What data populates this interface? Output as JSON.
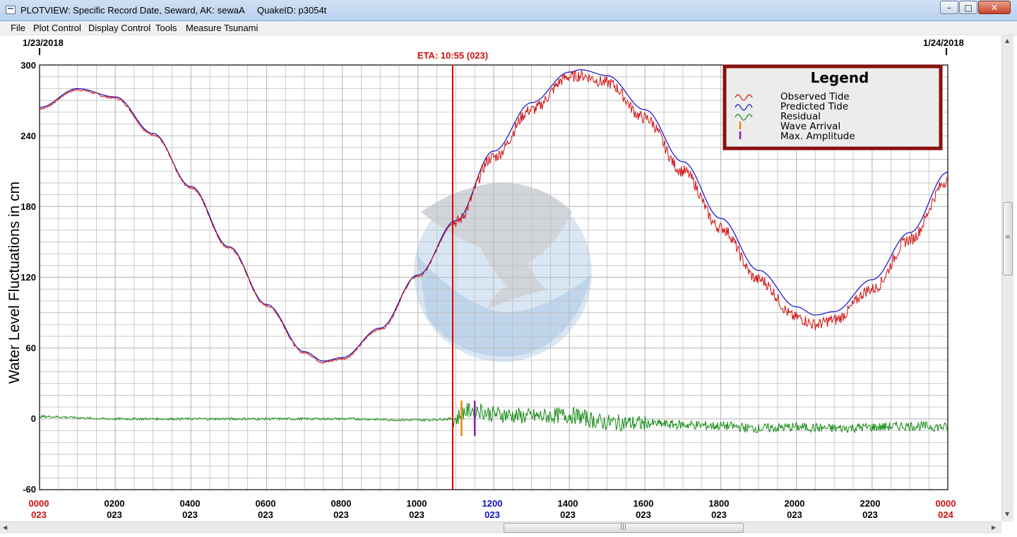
{
  "window": {
    "title": "PLOTVIEW: Specific Record Date, Seward, AK: sewaA     QuakeID: p3054t",
    "minimize_glyph": "–",
    "maximize_glyph": "□",
    "close_glyph": "✕"
  },
  "menu": {
    "items": [
      "File",
      "Plot Control",
      "Display Control",
      "Tools",
      "Measure Tsunami"
    ]
  },
  "plot": {
    "date_left": "1/23/2018",
    "date_right": "1/24/2018",
    "eta_label": "ETA: 10:55 (023)",
    "ylabel": "Water Level Fluctuations in cm",
    "y_ticks": [
      "300",
      "240",
      "180",
      "120",
      "60",
      "0",
      "-60"
    ],
    "x_ticks": [
      {
        "time": "0000",
        "day": "023",
        "color": "red"
      },
      {
        "time": "0200",
        "day": "023",
        "color": "black"
      },
      {
        "time": "0400",
        "day": "023",
        "color": "black"
      },
      {
        "time": "0600",
        "day": "023",
        "color": "black"
      },
      {
        "time": "0800",
        "day": "023",
        "color": "black"
      },
      {
        "time": "1000",
        "day": "023",
        "color": "black"
      },
      {
        "time": "1200",
        "day": "023",
        "color": "blue"
      },
      {
        "time": "1400",
        "day": "023",
        "color": "black"
      },
      {
        "time": "1600",
        "day": "023",
        "color": "black"
      },
      {
        "time": "1800",
        "day": "023",
        "color": "black"
      },
      {
        "time": "2000",
        "day": "023",
        "color": "black"
      },
      {
        "time": "2200",
        "day": "023",
        "color": "black"
      },
      {
        "time": "0000",
        "day": "024",
        "color": "red"
      }
    ],
    "legend": {
      "title": "Legend",
      "items": [
        {
          "label": "Observed Tide",
          "symbol": "wave",
          "color": "#d01010"
        },
        {
          "label": "Predicted Tide",
          "symbol": "wave",
          "color": "#1010c8"
        },
        {
          "label": "Residual",
          "symbol": "wave",
          "color": "#138a13"
        },
        {
          "label": "Wave Arrival",
          "symbol": "bar",
          "color": "#e8870a"
        },
        {
          "label": "Max. Amplitude",
          "symbol": "bar",
          "color": "#8a18b0"
        }
      ]
    },
    "colors": {
      "observed": "#d01010",
      "predicted": "#1010c8",
      "residual": "#138a13",
      "eta_line": "#e00000",
      "wave_arrival": "#e8870a",
      "max_amplitude": "#8a18b0",
      "legend_border": "#8b1010",
      "grid": "#bdbdbd",
      "watermark": "#bcd3ea"
    }
  },
  "chart_data": {
    "type": "line",
    "title": "",
    "xlabel": "",
    "ylabel": "Water Level Fluctuations in cm",
    "x_unit": "hours since 0000 day 023",
    "xlim": [
      0,
      24
    ],
    "ylim": [
      -60,
      300
    ],
    "grid": true,
    "legend_position": "top-right",
    "eta_hours": 10.917,
    "wave_arrival_hours": 11.15,
    "max_amplitude_hours": 11.5,
    "series": [
      {
        "name": "Predicted Tide",
        "x": [
          0,
          1,
          2,
          3,
          4,
          5,
          6,
          7,
          7.5,
          8,
          9,
          10,
          11,
          12,
          13,
          14,
          14.3,
          15,
          16,
          17,
          18,
          19,
          20,
          20.5,
          21,
          22,
          23,
          24
        ],
        "y": [
          264,
          280,
          273,
          242,
          197,
          146,
          97,
          57,
          49,
          52,
          77,
          122,
          168,
          227,
          268,
          294,
          296,
          291,
          262,
          218,
          170,
          126,
          95,
          88,
          91,
          118,
          158,
          209
        ]
      },
      {
        "name": "Observed Tide",
        "x": [
          0,
          1,
          2,
          3,
          4,
          5,
          6,
          7,
          7.5,
          8,
          9,
          10,
          11,
          12,
          13,
          14,
          14.3,
          15,
          16,
          17,
          18,
          19,
          20,
          20.5,
          21,
          22,
          23,
          24
        ],
        "y": [
          263,
          279,
          272,
          241,
          196,
          145,
          96,
          56,
          48,
          51,
          76,
          121,
          167,
          222,
          262,
          290,
          291,
          285,
          255,
          210,
          162,
          118,
          86,
          80,
          84,
          110,
          152,
          202
        ]
      },
      {
        "name": "Residual",
        "x": [
          0,
          2,
          4,
          6,
          8,
          10,
          11,
          11.2,
          11.5,
          12,
          13,
          14,
          15,
          16,
          17,
          18,
          19,
          20,
          21,
          22,
          23,
          24
        ],
        "y": [
          2,
          0,
          0,
          0,
          0,
          -1,
          0,
          6,
          8,
          4,
          2,
          3,
          -3,
          -4,
          -5,
          -6,
          -8,
          -7,
          -8,
          -7,
          -6,
          -7
        ]
      }
    ]
  }
}
